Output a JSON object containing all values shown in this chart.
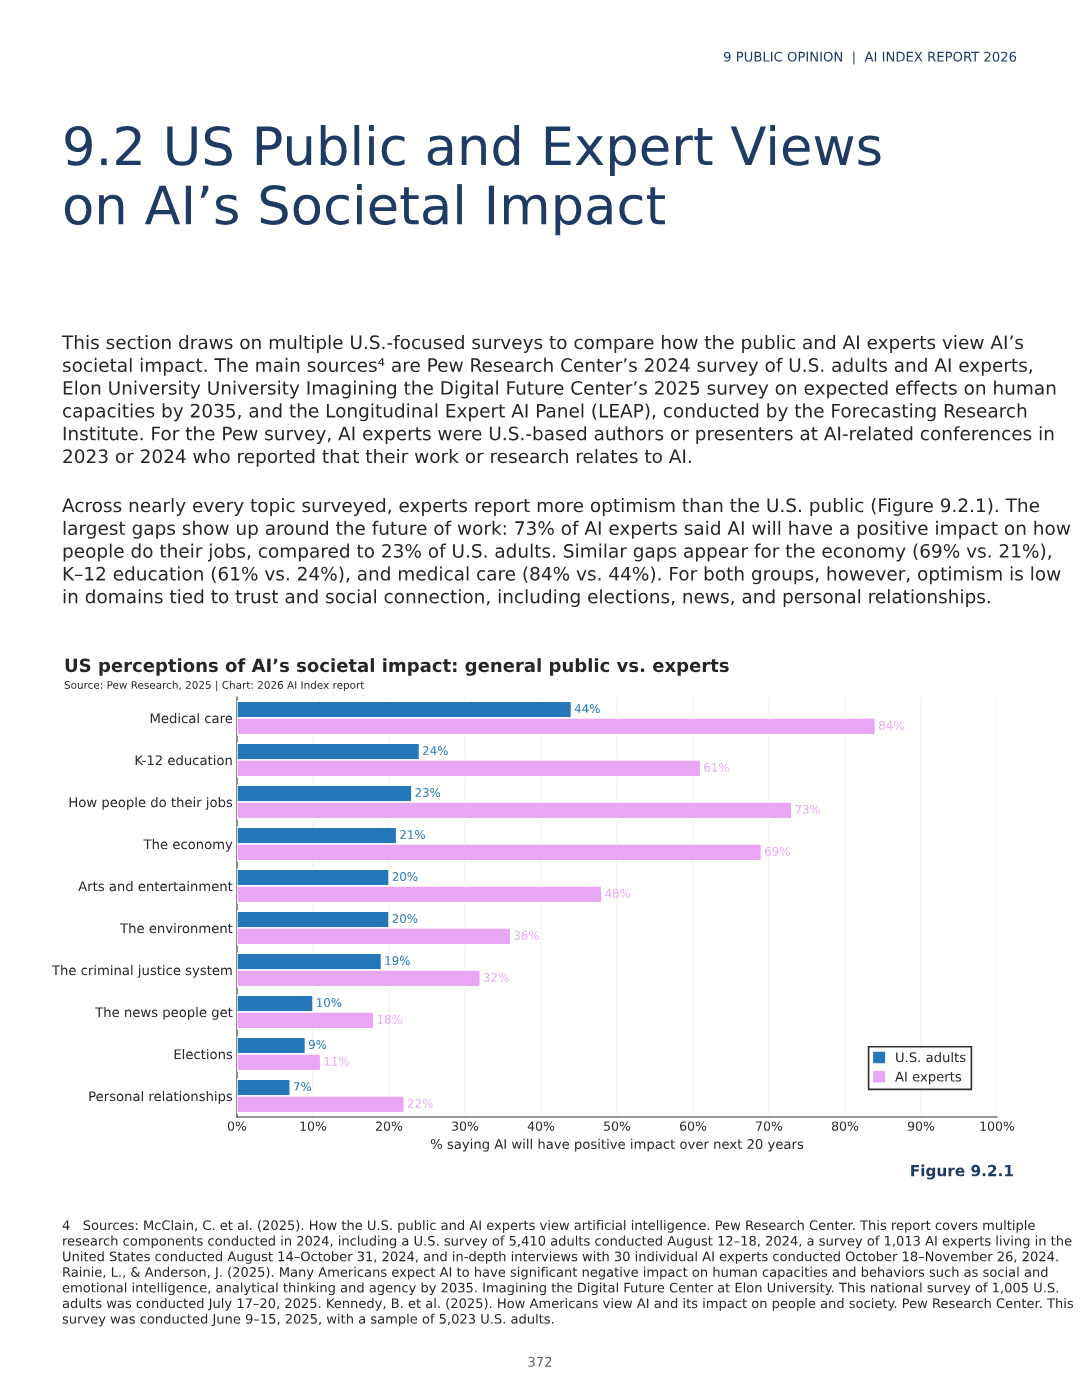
{
  "chart_data": {
    "type": "bar",
    "orientation": "horizontal",
    "title": "US perceptions of AI’s societal impact: general public vs. experts",
    "subtitle": "Source: Pew Research, 2025 | Chart: 2026 AI Index report",
    "xlabel": "% saying AI will have positive impact over next 20 years",
    "categories": [
      "Medical care",
      "K-12 education",
      "How people do their jobs",
      "The economy",
      "Arts and entertainment",
      "The environment",
      "The criminal justice system",
      "The news people get",
      "Elections",
      "Personal relationships"
    ],
    "series": [
      {
        "name": "U.S. adults",
        "color": "#2477b8",
        "values": [
          44,
          24,
          23,
          21,
          20,
          20,
          19,
          10,
          9,
          7
        ],
        "value_labels": [
          "44%",
          "24%",
          "23%",
          "21%",
          "20%",
          "20%",
          "19%",
          "10%",
          "9%",
          "7%"
        ]
      },
      {
        "name": "AI experts",
        "color": "#e8a6f5",
        "values": [
          84,
          61,
          73,
          69,
          48,
          36,
          32,
          18,
          11,
          22
        ],
        "value_labels": [
          "84%",
          "61%",
          "73%",
          "69%",
          "48%",
          "36%",
          "32%",
          "18%",
          "11%",
          "22%"
        ]
      }
    ],
    "xlim": [
      0,
      100
    ],
    "xticks": [
      {
        "value": 0,
        "label": "0%"
      },
      {
        "value": 10,
        "label": "10%"
      },
      {
        "value": 20,
        "label": "20%"
      },
      {
        "value": 30,
        "label": "30%"
      },
      {
        "value": 40,
        "label": "40%"
      },
      {
        "value": 50,
        "label": "50%"
      },
      {
        "value": 60,
        "label": "60%"
      },
      {
        "value": 70,
        "label": "70%"
      },
      {
        "value": 80,
        "label": "80%"
      },
      {
        "value": 90,
        "label": "90%"
      },
      {
        "value": 100,
        "label": "100%"
      }
    ],
    "grid": "x",
    "legend": "bottom right",
    "annotations": [
      "9 PUBLIC OPINION  |  AI INDEX REPORT 2026",
      "9.2 US Public and Expert Views\non AI’s Societal Impact",
      "This section draws on multiple U.S.-focused surveys to compare how the public and AI experts view AI’s societal impact. The main sources⁴ are Pew Research Center’s 2024 survey of U.S. adults and AI experts, Elon University University Imagining the Digital Future Center’s 2025 survey on expected effects on human capacities by 2035, and the Longitudinal Expert AI Panel (LEAP), conducted by the Forecasting Research Institute. For the Pew survey, AI experts were U.S.-based authors or presenters at AI-related conferences in 2023 or 2024 who reported that their work or research relates to AI.",
      "Across nearly every topic surveyed, experts report more optimism than the U.S. public (Figure 9.2.1). The largest gaps show up around the future of work: 73% of AI experts said AI will have a positive impact on how people do their jobs, compared to 23% of U.S. adults. Similar gaps appear for the economy (69% vs. 21%), K–12 education (61% vs. 24%), and medical care (84% vs. 44%). For both groups, however, optimism is low in domains tied to trust and social connection, including elections, news, and personal relationships.",
      "Figure 9.2.1",
      "4   Sources: McClain, C. et al. (2025). How the U.S. public and AI experts view artificial intelligence. Pew Research Center. This report covers multiple research components conducted in 2024, including a U.S. survey of 5,410 adults conducted August 12–18, 2024, a survey of 1,013 AI experts living in the United States conducted August 14–October 31, 2024, and in-depth interviews with 30 individual AI experts conducted October 18–November 26, 2024. Rainie, L., & Anderson, J. (2025). Many Americans expect AI to have significant negative impact on human capacities and behaviors such as social and emotional intelligence, analytical thinking and agency by 2035. Imagining the Digital Future Center at Elon University. This national survey of 1,005 U.S. adults was conducted July 17–20, 2025. Kennedy, B. et al. (2025). How Americans view AI and its impact on people and society. Pew Research Center. This survey was conducted June 9–15, 2025, with a sample of 5,023 U.S. adults.",
      "372"
    ]
  }
}
